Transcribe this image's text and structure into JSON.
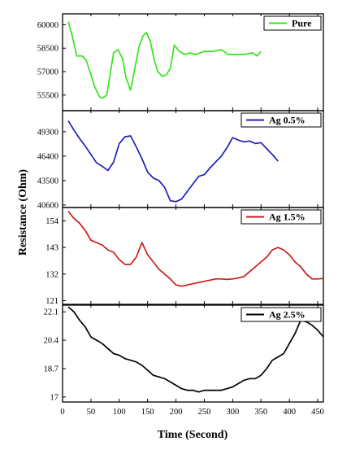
{
  "chart_data": {
    "type": "line",
    "xlabel": "Time (Second)",
    "ylabel": "Resistance (Ohm)",
    "xlim": [
      0,
      460
    ],
    "x_ticks": [
      0,
      50,
      100,
      150,
      200,
      250,
      300,
      350,
      400,
      450
    ],
    "grid": false,
    "legend_position": "top-right",
    "panels": [
      {
        "name": "Pure",
        "color": "#33e61a",
        "ylim": [
          54500,
          60700
        ],
        "y_ticks": [
          55500,
          57000,
          58500,
          60000
        ],
        "x": [
          10,
          17,
          25,
          35,
          42,
          50,
          57,
          65,
          70,
          78,
          90,
          98,
          106,
          112,
          120,
          128,
          135,
          142,
          148,
          155,
          162,
          168,
          176,
          183,
          190,
          197,
          206,
          215,
          225,
          235,
          250,
          265,
          280,
          292,
          305,
          320,
          335,
          343,
          350
        ],
        "y": [
          60200,
          59300,
          58000,
          58000,
          57700,
          56800,
          56000,
          55400,
          55300,
          55500,
          58200,
          58400,
          57800,
          56600,
          55800,
          57300,
          58600,
          59300,
          59500,
          58900,
          57700,
          57000,
          56700,
          56800,
          57200,
          58700,
          58300,
          58100,
          58200,
          58100,
          58300,
          58300,
          58400,
          58100,
          58100,
          58100,
          58200,
          58000,
          58300
        ]
      },
      {
        "name": "Ag 0.5%",
        "color": "#1f1fb8",
        "ylim": [
          40300,
          51800
        ],
        "y_ticks": [
          40600,
          43500,
          46400,
          49300
        ],
        "x": [
          10,
          20,
          30,
          40,
          50,
          60,
          70,
          80,
          90,
          100,
          110,
          120,
          130,
          140,
          150,
          160,
          170,
          180,
          190,
          200,
          210,
          220,
          230,
          240,
          250,
          260,
          270,
          280,
          290,
          300,
          310,
          320,
          330,
          340,
          350,
          360,
          370,
          380
        ],
        "y": [
          50600,
          49500,
          48500,
          47600,
          46600,
          45600,
          45200,
          44700,
          45700,
          47900,
          48700,
          48800,
          47500,
          46100,
          44500,
          43800,
          43500,
          42700,
          41100,
          41000,
          41300,
          42200,
          43100,
          44000,
          44200,
          45000,
          45700,
          46400,
          47400,
          48600,
          48300,
          48100,
          48200,
          47900,
          48000,
          47300,
          46600,
          45800
        ]
      },
      {
        "name": "Ag 1.5%",
        "color": "#cc1a1a",
        "ylim": [
          119500,
          159500
        ],
        "y_ticks": [
          121,
          132,
          143,
          154
        ],
        "x": [
          10,
          20,
          30,
          40,
          50,
          60,
          70,
          80,
          90,
          100,
          110,
          120,
          130,
          140,
          150,
          160,
          170,
          180,
          190,
          200,
          210,
          220,
          230,
          240,
          250,
          260,
          270,
          280,
          290,
          300,
          310,
          320,
          330,
          340,
          350,
          360,
          370,
          380,
          390,
          400,
          410,
          420,
          430,
          440,
          450,
          460
        ],
        "y": [
          158,
          155,
          153,
          150,
          146,
          145,
          144,
          142,
          141,
          138,
          136,
          136,
          139,
          145,
          140,
          137,
          134,
          132,
          130,
          127.5,
          127,
          127.5,
          128,
          128.5,
          129,
          129.5,
          130,
          130,
          129.8,
          130,
          130.4,
          131,
          133,
          135,
          137,
          139,
          142,
          143,
          142,
          140,
          137,
          135,
          132,
          130,
          130,
          130.2
        ],
        "y_scale": 1000
      },
      {
        "name": "Ag 2.5%",
        "color": "#000000",
        "ylim": [
          16700,
          22500
        ],
        "y_ticks": [
          17.0,
          18.7,
          20.4,
          22.1
        ],
        "x": [
          10,
          20,
          30,
          40,
          50,
          60,
          70,
          80,
          90,
          100,
          110,
          120,
          130,
          140,
          150,
          160,
          170,
          180,
          190,
          200,
          210,
          220,
          230,
          240,
          250,
          260,
          270,
          280,
          290,
          300,
          310,
          320,
          330,
          340,
          350,
          360,
          370,
          380,
          390,
          400,
          410,
          420,
          430,
          440,
          450,
          460
        ],
        "y": [
          22.4,
          22.1,
          21.6,
          21.2,
          20.6,
          20.4,
          20.2,
          19.9,
          19.6,
          19.5,
          19.3,
          19.2,
          19.1,
          18.9,
          18.6,
          18.3,
          18.2,
          18.1,
          17.9,
          17.7,
          17.5,
          17.4,
          17.4,
          17.3,
          17.4,
          17.4,
          17.4,
          17.4,
          17.5,
          17.6,
          17.8,
          18.0,
          18.1,
          18.1,
          18.3,
          18.7,
          19.2,
          19.4,
          19.6,
          20.2,
          20.8,
          21.6,
          21.5,
          21.3,
          21.0,
          20.6
        ],
        "y_scale": 1000
      }
    ]
  }
}
